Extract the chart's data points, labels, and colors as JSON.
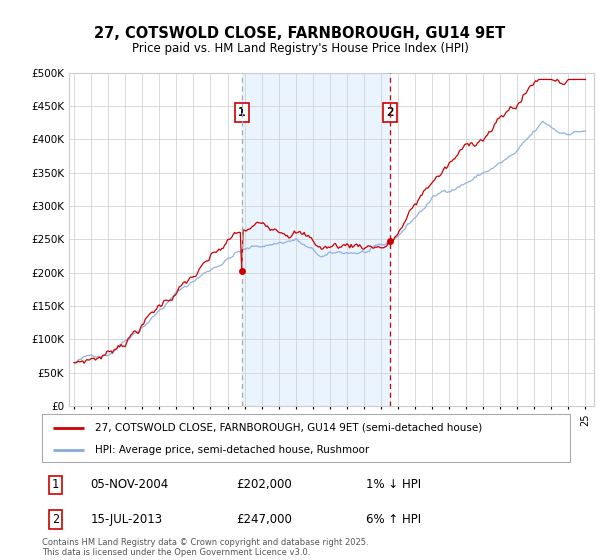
{
  "title": "27, COTSWOLD CLOSE, FARNBOROUGH, GU14 9ET",
  "subtitle": "Price paid vs. HM Land Registry's House Price Index (HPI)",
  "legend_line1": "27, COTSWOLD CLOSE, FARNBOROUGH, GU14 9ET (semi-detached house)",
  "legend_line2": "HPI: Average price, semi-detached house, Rushmoor",
  "annotation1": {
    "num": "1",
    "date": "05-NOV-2004",
    "price": "£202,000",
    "change": "1% ↓ HPI"
  },
  "annotation2": {
    "num": "2",
    "date": "15-JUL-2013",
    "price": "£247,000",
    "change": "6% ↑ HPI"
  },
  "footer": "Contains HM Land Registry data © Crown copyright and database right 2025.\nThis data is licensed under the Open Government Licence v3.0.",
  "vline1_x": 2004.83,
  "vline2_x": 2013.54,
  "sale1_x": 2004.83,
  "sale1_y": 202000,
  "sale2_x": 2013.54,
  "sale2_y": 247000,
  "color_price": "#cc0000",
  "color_hpi": "#88aadd",
  "color_vline1": "#aaaaaa",
  "color_vline2": "#cc0000",
  "color_shade": "#ddeeff",
  "ylim": [
    0,
    500000
  ],
  "xlim": [
    1994.7,
    2025.5
  ],
  "background_color": "#ffffff",
  "grid_color": "#cccccc",
  "yticks": [
    0,
    50000,
    100000,
    150000,
    200000,
    250000,
    300000,
    350000,
    400000,
    450000,
    500000
  ]
}
